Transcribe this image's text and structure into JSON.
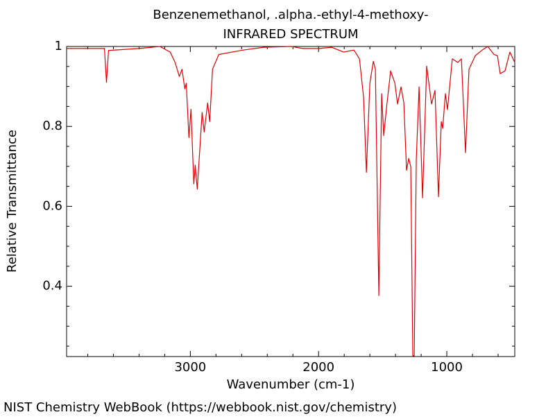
{
  "chart_data": {
    "type": "line",
    "title": "Benzenemethanol, .alpha.-ethyl-4-methoxy-",
    "subtitle": "INFRARED SPECTRUM",
    "x_label": "Wavenumber (cm-1)",
    "y_label": "Relative Transmittance",
    "source": "NIST Chemistry WebBook (https://webbook.nist.gov/chemistry)",
    "color": "#e00000",
    "xlim": [
      3965,
      470
    ],
    "ylim": [
      0.224,
      1.0
    ],
    "xticks": [
      3000,
      2000,
      1000
    ],
    "yticks": [
      0.4,
      0.6,
      0.8,
      1
    ],
    "xminorticks": [
      3800,
      3600,
      3400,
      3200,
      2800,
      2600,
      2400,
      2200,
      1800,
      1600,
      1400,
      1200,
      800,
      600
    ],
    "yminorticks": [
      0.25,
      0.3,
      0.35,
      0.45,
      0.5,
      0.55,
      0.65,
      0.7,
      0.75,
      0.85,
      0.9,
      0.95
    ],
    "x": [
      3962,
      3670,
      3654,
      3638,
      3400,
      3238,
      3157,
      3119,
      3086,
      3065,
      3043,
      3032,
      3011,
      2995,
      2973,
      2962,
      2946,
      2908,
      2892,
      2865,
      2849,
      2827,
      2778,
      2589,
      2427,
      2211,
      2124,
      1995,
      1897,
      1805,
      1724,
      1681,
      1649,
      1627,
      1600,
      1573,
      1557,
      1530,
      1508,
      1492,
      1470,
      1438,
      1405,
      1384,
      1357,
      1335,
      1314,
      1297,
      1281,
      1265,
      1254,
      1238,
      1216,
      1189,
      1157,
      1119,
      1092,
      1065,
      1043,
      1032,
      1011,
      995,
      957,
      914,
      886,
      854,
      827,
      778,
      724,
      681,
      632,
      605,
      584,
      546,
      508,
      470
    ],
    "values": [
      0.995,
      0.995,
      0.91,
      0.99,
      0.995,
      1.0,
      0.986,
      0.96,
      0.925,
      0.943,
      0.894,
      0.908,
      0.772,
      0.843,
      0.656,
      0.703,
      0.643,
      0.835,
      0.786,
      0.859,
      0.812,
      0.943,
      0.98,
      0.991,
      0.998,
      1.0,
      0.995,
      0.995,
      0.998,
      0.986,
      0.991,
      0.969,
      0.873,
      0.685,
      0.908,
      0.963,
      0.943,
      0.377,
      0.882,
      0.777,
      0.847,
      0.939,
      0.908,
      0.856,
      0.899,
      0.859,
      0.69,
      0.72,
      0.699,
      0.226,
      0.226,
      0.717,
      0.899,
      0.621,
      0.951,
      0.856,
      0.89,
      0.624,
      0.812,
      0.795,
      0.882,
      0.842,
      0.969,
      0.96,
      0.969,
      0.734,
      0.943,
      0.977,
      0.991,
      1.0,
      0.98,
      0.977,
      0.932,
      0.939,
      0.986,
      0.96
    ]
  }
}
